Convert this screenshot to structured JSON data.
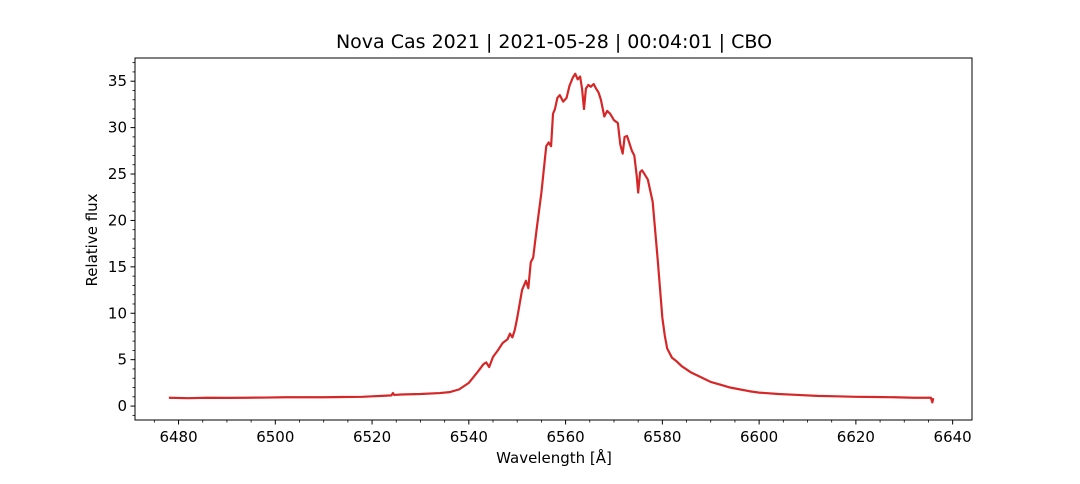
{
  "chart_data": {
    "type": "line",
    "title": "Nova Cas 2021 | 2021-05-28 | 00:04:01 | CBO",
    "xlabel": "Wavelength [Å]",
    "ylabel": "Relative flux",
    "xlim": [
      6471,
      6644
    ],
    "ylim": [
      -1.5,
      37.5
    ],
    "xticks": [
      6480,
      6500,
      6520,
      6540,
      6560,
      6580,
      6600,
      6620,
      6640
    ],
    "yticks": [
      0,
      5,
      10,
      15,
      20,
      25,
      30,
      35
    ],
    "grid": false,
    "line_color": "#d62728",
    "series": [
      {
        "x": [
          6478,
          6482,
          6486,
          6490,
          6494,
          6498,
          6502,
          6506,
          6510,
          6514,
          6518,
          6520,
          6522,
          6524,
          6524.3,
          6524.6,
          6526,
          6530,
          6534,
          6536,
          6538,
          6540,
          6542,
          6543,
          6543.6,
          6544.2,
          6545,
          6546,
          6547,
          6548,
          6548.5,
          6549,
          6549.5,
          6550,
          6551,
          6551.8,
          6552.3,
          6552.8,
          6553.3,
          6554,
          6555,
          6556,
          6556.5,
          6557,
          6557.4,
          6557.8,
          6558.3,
          6558.8,
          6559.5,
          6560.2,
          6560.8,
          6561.5,
          6562,
          6562.5,
          6563,
          6563.4,
          6563.8,
          6564.2,
          6564.7,
          6565.2,
          6565.8,
          6566.3,
          6566.8,
          6567.3,
          6568,
          6568.6,
          6569.2,
          6570,
          6570.8,
          6571.3,
          6571.8,
          6572.2,
          6572.7,
          6573.2,
          6573.7,
          6574.2,
          6574.7,
          6575,
          6575.4,
          6575.8,
          6576.3,
          6577,
          6578,
          6579,
          6580,
          6580.5,
          6581,
          6582,
          6583,
          6584,
          6586,
          6588,
          6590,
          6592,
          6594,
          6596,
          6598,
          6600,
          6604,
          6608,
          6612,
          6616,
          6620,
          6624,
          6628,
          6632,
          6635.5,
          6635.8,
          6636
        ],
        "y": [
          0.9,
          0.85,
          0.9,
          0.88,
          0.9,
          0.92,
          0.95,
          0.95,
          0.95,
          0.98,
          1.0,
          1.05,
          1.1,
          1.15,
          1.4,
          1.2,
          1.25,
          1.3,
          1.4,
          1.5,
          1.8,
          2.5,
          3.8,
          4.5,
          4.7,
          4.2,
          5.3,
          6.0,
          6.8,
          7.2,
          7.8,
          7.4,
          8.2,
          9.5,
          12.5,
          13.5,
          12.7,
          15.5,
          16.0,
          19.0,
          23.0,
          28.0,
          28.4,
          28.0,
          31.5,
          32.0,
          33.2,
          33.5,
          32.8,
          33.2,
          34.5,
          35.4,
          35.8,
          35.2,
          35.5,
          34.2,
          32.0,
          34.2,
          34.6,
          34.4,
          34.7,
          34.2,
          33.8,
          33.0,
          31.2,
          31.8,
          31.5,
          30.8,
          30.5,
          28.2,
          27.2,
          29.0,
          29.1,
          28.3,
          27.5,
          27.0,
          24.8,
          23.0,
          25.2,
          25.4,
          25.0,
          24.4,
          22.0,
          16.0,
          9.5,
          7.6,
          6.2,
          5.2,
          4.8,
          4.3,
          3.6,
          3.1,
          2.6,
          2.3,
          2.0,
          1.8,
          1.6,
          1.45,
          1.3,
          1.2,
          1.1,
          1.05,
          1.0,
          0.98,
          0.95,
          0.9,
          0.9,
          0.4,
          0.85
        ]
      }
    ]
  }
}
